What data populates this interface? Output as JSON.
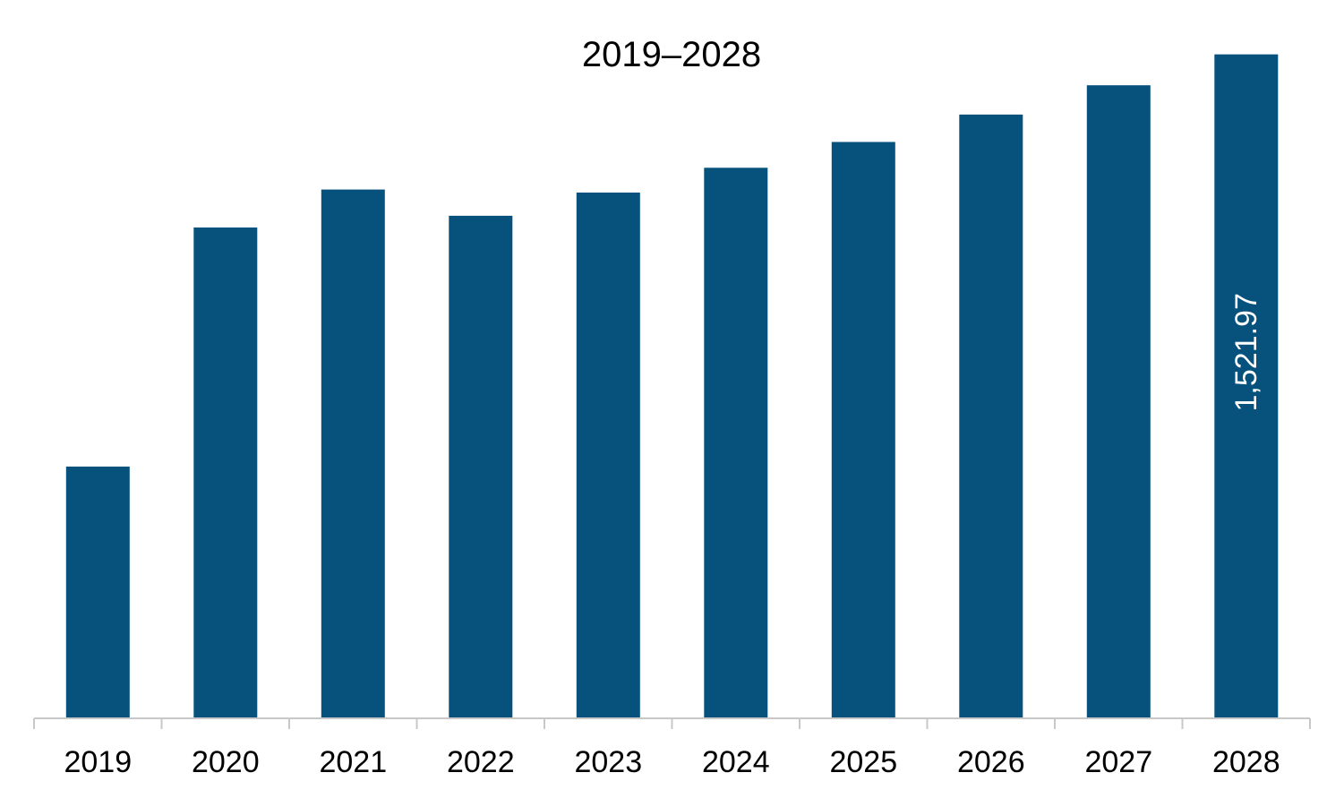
{
  "chart_data": {
    "type": "bar",
    "title": "2019–2028",
    "categories": [
      "2019",
      "2020",
      "2021",
      "2022",
      "2023",
      "2024",
      "2025",
      "2026",
      "2027",
      "2028"
    ],
    "series": [
      {
        "values": [
          577,
          1125,
          1212,
          1152,
          1205,
          1262,
          1321,
          1384,
          1451,
          1521.97
        ],
        "color": "#07517d"
      }
    ],
    "data_labels": [
      {
        "category": "2028",
        "text": "1,521.97",
        "orientation": "vertical"
      }
    ],
    "ylim": [
      0,
      1550
    ],
    "y_axis_visible": false,
    "grid": false,
    "legend": "none"
  }
}
